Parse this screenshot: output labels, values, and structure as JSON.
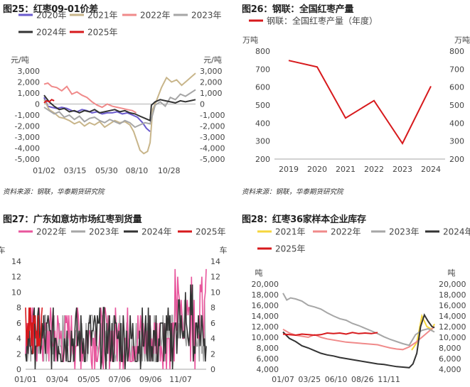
{
  "chart_data": [
    {
      "id": "fig25",
      "type": "line",
      "title": "图25：红枣09-01价差",
      "ylabel_left": "元/吨",
      "ylabel_right": "元/吨",
      "ylim": [
        -5000,
        3000
      ],
      "yticks": [
        3000,
        2000,
        1000,
        0,
        -1000,
        -2000,
        -3000,
        -4000,
        -5000
      ],
      "ytick_labels": [
        "3,000",
        "2,000",
        "1,000",
        "0",
        "-1,000",
        "-2,000",
        "-3,000",
        "-4,000",
        "-5,000"
      ],
      "xlim": [
        0,
        12
      ],
      "xticks": [
        0,
        2.45,
        4.95,
        7.35,
        9.9
      ],
      "xtick_labels": [
        "01/02",
        "03/15",
        "05/30",
        "08/10",
        "10/28"
      ],
      "grid": false,
      "legend_position": "top",
      "source": "资料来源：钢联，华泰期货研究院",
      "series": [
        {
          "name": "2020年",
          "color": "#6a5acd",
          "x": [
            0,
            0.3,
            0.6,
            1,
            1.4,
            1.8,
            2.2,
            2.6,
            3,
            3.4,
            3.8,
            4.2,
            4.6,
            5,
            5.4,
            5.8,
            6.2,
            6.6,
            7,
            7.4,
            7.8,
            8.1,
            8.4
          ],
          "y": [
            600,
            -200,
            -300,
            -400,
            -300,
            -400,
            -600,
            -700,
            -500,
            -600,
            -800,
            -700,
            -900,
            -800,
            -800,
            -700,
            -900,
            -800,
            -1000,
            -1200,
            -1700,
            -2200,
            -2500
          ]
        },
        {
          "name": "2021年",
          "color": "#c8b58a",
          "x": [
            0,
            0.4,
            0.8,
            1.2,
            1.6,
            2,
            2.4,
            2.8,
            3.2,
            3.6,
            4,
            4.4,
            4.8,
            5.2,
            5.6,
            6,
            6.4,
            6.8,
            7.1,
            7.4,
            7.6,
            7.9,
            8.2,
            8.4,
            8.6,
            8.9,
            9.3,
            9.7,
            10.1,
            10.5,
            10.9,
            11.3,
            11.7,
            12
          ],
          "y": [
            400,
            -500,
            -800,
            -1200,
            -1300,
            -1500,
            -1800,
            -1600,
            -2000,
            -1700,
            -1900,
            -1600,
            -2100,
            -1800,
            -1500,
            -1700,
            -1600,
            -1900,
            -2500,
            -3500,
            -4200,
            -4500,
            -4300,
            -3500,
            -500,
            300,
            1500,
            2400,
            2000,
            2200,
            1700,
            2100,
            2500,
            2800
          ]
        },
        {
          "name": "2022年",
          "color": "#f08a8a",
          "x": [
            0,
            0.3,
            0.6,
            1,
            1.4,
            1.8,
            2.2,
            2.6,
            3,
            3.4,
            3.8,
            4.2,
            4.6,
            5,
            5.4,
            5.8,
            6.2,
            6.6,
            7,
            7.3
          ],
          "y": [
            1800,
            1900,
            1600,
            1500,
            1200,
            1600,
            900,
            1100,
            800,
            600,
            200,
            -100,
            -300,
            0,
            -200,
            -300,
            -400,
            -500,
            -600,
            -800
          ]
        },
        {
          "name": "2023年",
          "color": "#a6a6a6",
          "x": [
            0,
            0.4,
            0.8,
            1.2,
            1.6,
            2,
            2.4,
            2.8,
            3.2,
            3.6,
            4,
            4.4,
            4.8,
            5.2,
            5.6,
            6,
            6.4,
            6.8,
            7.2,
            7.6,
            8,
            8.4,
            8.8,
            9.2,
            9.6,
            10,
            10.4,
            10.8,
            11.2,
            11.6,
            12
          ],
          "y": [
            -300,
            -600,
            -900,
            -700,
            -1200,
            -1000,
            -1400,
            -1100,
            -1600,
            -1300,
            -1200,
            -1500,
            -1700,
            -1400,
            -1600,
            -1800,
            -1500,
            -1700,
            -2100,
            -1900,
            -1700,
            -1800,
            -100,
            200,
            -200,
            600,
            400,
            900,
            700,
            1000,
            1300
          ]
        },
        {
          "name": "2024年",
          "color": "#333333",
          "x": [
            0,
            0.4,
            0.8,
            1.2,
            1.6,
            2,
            2.4,
            2.8,
            3.2,
            3.6,
            4,
            4.4,
            4.8,
            5.2,
            5.6,
            6,
            6.4,
            6.8,
            7.2,
            7.6,
            8,
            8.4,
            8.5,
            8.8,
            9.2,
            9.6,
            10,
            10.4,
            10.8,
            11.2,
            11.6,
            12
          ],
          "y": [
            800,
            200,
            -200,
            -500,
            -400,
            -700,
            -600,
            -800,
            -600,
            -700,
            -500,
            -800,
            -700,
            -600,
            -500,
            -700,
            -600,
            -800,
            -900,
            -1100,
            -1300,
            -1500,
            -100,
            200,
            400,
            300,
            200,
            100,
            300,
            200,
            300,
            400
          ]
        },
        {
          "name": "2025年",
          "color": "#d7191c",
          "x": [
            0,
            0.2,
            0.4,
            0.6,
            0.8
          ],
          "y": [
            100,
            300,
            200,
            400,
            300
          ]
        }
      ]
    },
    {
      "id": "fig26",
      "type": "line",
      "title": "图26：钢联：全国红枣产量",
      "ylabel_left": "万吨",
      "ylabel_right": "万吨",
      "ylim": [
        200,
        800
      ],
      "yticks": [
        800,
        700,
        600,
        500,
        400,
        300,
        200
      ],
      "categories": [
        "2019",
        "2020",
        "2021",
        "2022",
        "2023",
        "2024"
      ],
      "grid": false,
      "legend_position": "top",
      "source": "资料来源：钢联，华泰期货研究院",
      "series": [
        {
          "name": "钢联：全国红枣产量（年度）",
          "color": "#d7191c",
          "values": [
            748,
            712,
            428,
            525,
            287,
            605
          ]
        }
      ]
    },
    {
      "id": "fig27",
      "type": "line",
      "title": "图27：广东如意坊市场红枣到货量",
      "ylabel_left": "车",
      "ylabel_right": "车",
      "ylim": [
        0,
        14
      ],
      "yticks": [
        14,
        12,
        10,
        8,
        6,
        4,
        2,
        0
      ],
      "xlim": [
        0,
        12
      ],
      "xticks": [
        0,
        2.1,
        4.2,
        6.25,
        8.3,
        10.3
      ],
      "xtick_labels": [
        "01/01",
        "03/04",
        "05/05",
        "07/06",
        "09/06",
        "11/07"
      ],
      "grid": false,
      "legend_position": "top",
      "source": "",
      "series": [
        {
          "name": "2022年",
          "color": "#e8559c"
        },
        {
          "name": "2023年",
          "color": "#a6a6a6"
        },
        {
          "name": "2024年",
          "color": "#333333"
        },
        {
          "name": "2025年",
          "color": "#d7191c"
        }
      ]
    },
    {
      "id": "fig28",
      "type": "line",
      "title": "图28：红枣36家样本企业库存",
      "ylabel_left": "吨",
      "ylabel_right": "吨",
      "ylim": [
        4000,
        20000
      ],
      "yticks": [
        20000,
        18000,
        16000,
        14000,
        12000,
        10000,
        8000,
        6000,
        4000
      ],
      "ytick_labels": [
        "20,000",
        "18,000",
        "16,000",
        "14,000",
        "12,000",
        "10,000",
        "8,000",
        "6,000",
        "4,000"
      ],
      "xlim": [
        0,
        12
      ],
      "xticks": [
        0,
        2.1,
        4.2,
        6.3,
        8.4,
        10.5
      ],
      "xtick_labels": [
        "01/07",
        "03/25",
        "06/10",
        "08/26",
        "11/11",
        ""
      ],
      "grid": false,
      "legend_position": "top",
      "source": "",
      "series": [
        {
          "name": "2021年",
          "color": "#f5d63d",
          "x": [
            10.2,
            10.6,
            11.0,
            11.4,
            11.8,
            12
          ],
          "y": [
            7600,
            9000,
            14000,
            12000,
            11500,
            12500
          ]
        },
        {
          "name": "2022年",
          "color": "#f08a8a",
          "x": [
            0,
            0.5,
            1,
            1.5,
            2,
            2.5,
            3,
            3.5,
            4,
            4.5,
            5,
            5.5,
            6,
            6.5,
            7,
            7.5,
            8,
            8.5,
            9,
            9.5,
            10,
            10.5,
            11,
            11.5,
            12
          ],
          "y": [
            11500,
            10800,
            10400,
            10200,
            10000,
            10500,
            10000,
            9700,
            9500,
            9300,
            9100,
            9000,
            8900,
            8800,
            8700,
            8600,
            8300,
            8000,
            7800,
            7700,
            8200,
            9000,
            10000,
            11000,
            12000
          ]
        },
        {
          "name": "2023年",
          "color": "#a6a6a6",
          "x": [
            0,
            0.3,
            0.6,
            1,
            1.5,
            2,
            2.5,
            3,
            3.5,
            4,
            4.5,
            5,
            5.5,
            6,
            6.5,
            7,
            7.5,
            8,
            8.5,
            9,
            9.5,
            10,
            10.5,
            11,
            11.5,
            12
          ],
          "y": [
            18300,
            17000,
            17400,
            17200,
            16800,
            16000,
            15700,
            15300,
            14600,
            14000,
            13500,
            13200,
            12600,
            12200,
            11700,
            11200,
            10700,
            10100,
            9600,
            9200,
            8800,
            8500,
            10500,
            11300,
            11600,
            11000
          ]
        },
        {
          "name": "2024年",
          "color": "#333333",
          "x": [
            0,
            0.5,
            1,
            1.5,
            2,
            2.5,
            3,
            3.5,
            4,
            4.5,
            5,
            5.5,
            6,
            6.5,
            7,
            7.5,
            8,
            8.5,
            9,
            9.5,
            10,
            10.3,
            10.6,
            10.9,
            11.2,
            11.5,
            11.8,
            12
          ],
          "y": [
            11000,
            9800,
            9200,
            8400,
            8000,
            7500,
            7000,
            6700,
            6500,
            6200,
            6000,
            5800,
            5600,
            5400,
            5200,
            5000,
            4900,
            4700,
            4500,
            4400,
            4300,
            5000,
            7000,
            12000,
            14200,
            13000,
            12000,
            11800
          ]
        },
        {
          "name": "2025年",
          "color": "#d7191c",
          "x": [
            0,
            0.5,
            1,
            1.5,
            2,
            2.5,
            3,
            3.5,
            4,
            4.5,
            5,
            5.5,
            6,
            6.5,
            7,
            7.5
          ],
          "y": [
            10600,
            10500,
            10400,
            10600,
            10500,
            10400,
            10500,
            10800,
            10700,
            10800,
            10600,
            10900,
            10700,
            10800,
            10700,
            10900
          ]
        }
      ]
    }
  ]
}
